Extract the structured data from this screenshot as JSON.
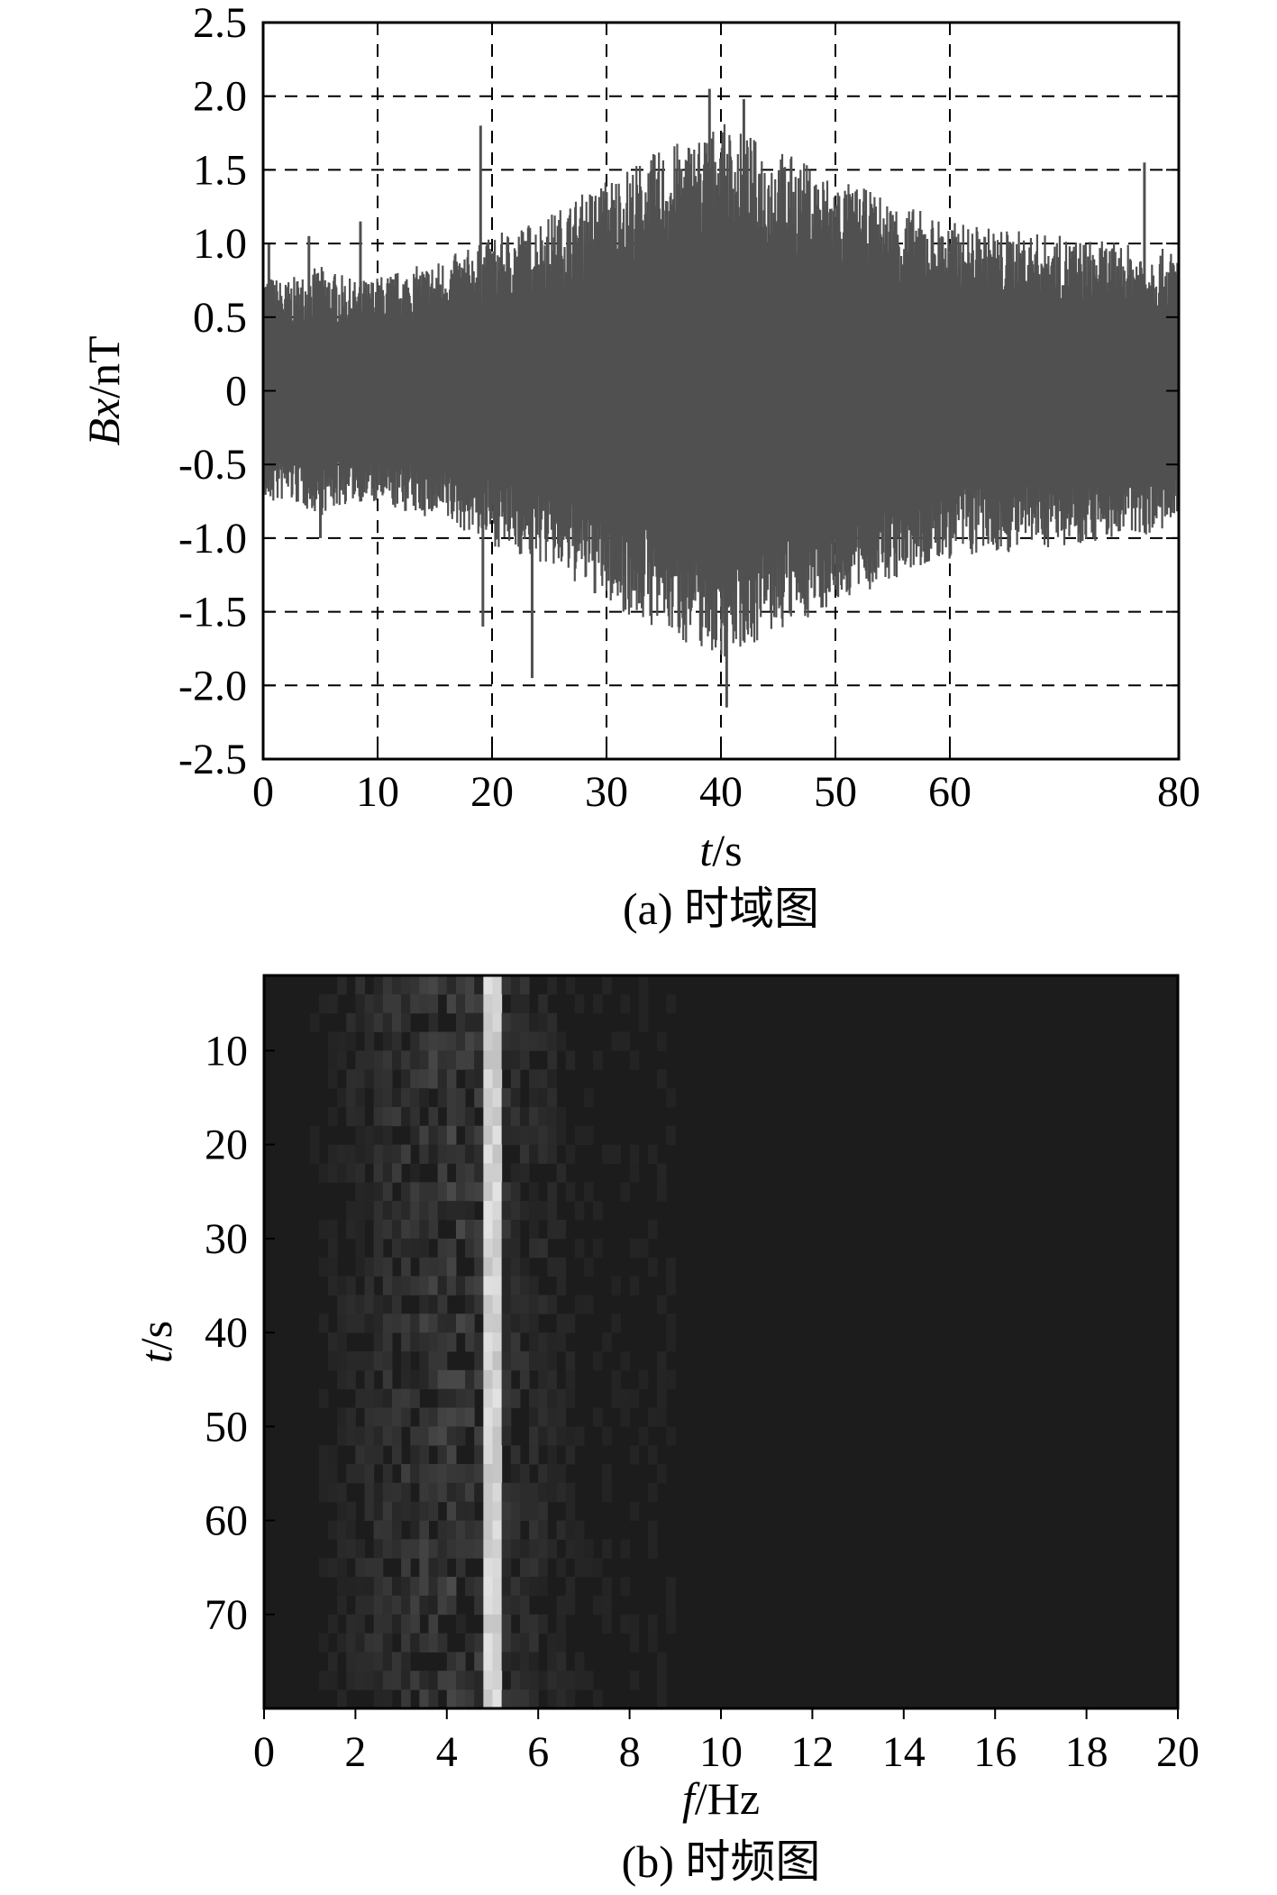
{
  "chart_data": [
    {
      "type": "line",
      "title": "",
      "xlabel": "t/s",
      "ylabel": "Bx/nT",
      "xlim": [
        0,
        80
      ],
      "ylim": [
        -2.5,
        2.5
      ],
      "xticks": [
        "0",
        "10",
        "20",
        "30",
        "40",
        "50",
        "60",
        "80"
      ],
      "xtick_values": [
        0,
        10,
        20,
        30,
        40,
        50,
        60,
        80
      ],
      "yticks": [
        "2.5",
        "2.0",
        "1.5",
        "1.0",
        "0.5",
        "0",
        "-0.5",
        "-1.0",
        "-1.5",
        "-2.0",
        "-2.5"
      ],
      "ytick_values": [
        2.5,
        2.0,
        1.5,
        1.0,
        0.5,
        0,
        -0.5,
        -1.0,
        -1.5,
        -2.0,
        -2.5
      ],
      "grid": true,
      "caption": "(a) 时域图",
      "envelope": {
        "t": [
          0,
          2,
          5,
          8,
          10,
          15,
          19,
          20,
          25,
          30,
          35,
          40,
          45,
          50,
          55,
          60,
          65,
          70,
          75,
          80
        ],
        "amplitude": [
          0.8,
          0.75,
          0.85,
          0.75,
          0.78,
          0.88,
          1.0,
          1.05,
          1.2,
          1.45,
          1.65,
          1.82,
          1.65,
          1.45,
          1.3,
          1.15,
          1.1,
          1.05,
          1.0,
          0.95
        ]
      },
      "spikes": [
        {
          "t": 0.5,
          "y": 1.0
        },
        {
          "t": 4.0,
          "y": 1.05
        },
        {
          "t": 8.5,
          "y": 1.15
        },
        {
          "t": 19.0,
          "y": 1.8
        },
        {
          "t": 19.2,
          "y": -1.6
        },
        {
          "t": 23.5,
          "y": -1.95
        },
        {
          "t": 39.0,
          "y": 2.05
        },
        {
          "t": 40.5,
          "y": -2.15
        },
        {
          "t": 42.0,
          "y": 1.98
        },
        {
          "t": 77.0,
          "y": 1.55
        },
        {
          "t": 5.0,
          "y": -1.0
        }
      ],
      "line_color": "#505050"
    },
    {
      "type": "heatmap",
      "title": "",
      "xlabel": "f/Hz",
      "ylabel": "t/s",
      "xlim": [
        0,
        20
      ],
      "ylim": [
        2,
        80
      ],
      "xticks": [
        "0",
        "2",
        "4",
        "6",
        "8",
        "10",
        "12",
        "14",
        "16",
        "18",
        "20"
      ],
      "xtick_values": [
        0,
        2,
        4,
        6,
        8,
        10,
        12,
        14,
        16,
        18,
        20
      ],
      "yticks": [
        "10",
        "20",
        "30",
        "40",
        "50",
        "60",
        "70"
      ],
      "ytick_values": [
        10,
        20,
        30,
        40,
        50,
        60,
        70
      ],
      "caption": "(b) 时频图",
      "background_color": "#1c1c1c",
      "dominant_frequency_hz": 5.0,
      "dominant_band_intensity": 0.92,
      "secondary_band_intensity": 0.22,
      "colormap": "gray"
    }
  ]
}
